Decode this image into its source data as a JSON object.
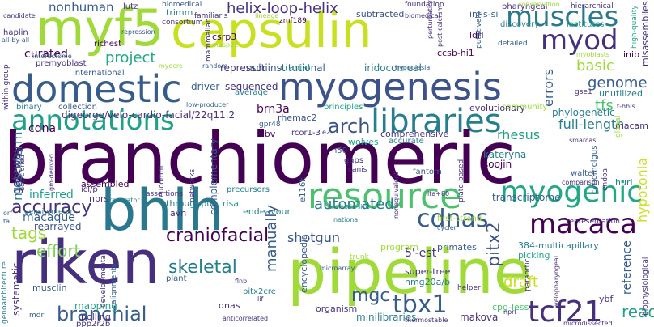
{
  "words": {
    "w1": "capsulin",
    "w2": "myf5",
    "w3": "domestic",
    "w4": "myogenesis",
    "w5": "muscles",
    "w6": "myod",
    "w7": "annotations",
    "w8": "libraries",
    "w9": "arch",
    "w10": "branchiomeric",
    "w11": "bhlh",
    "w12": "resource",
    "w13": "riken",
    "w14": "pipeline",
    "w15": "myogenic",
    "w16": "cdnas",
    "w17": "macaca",
    "w18": "tcf21",
    "w19": "accuracy",
    "w20": "tags",
    "w21": "helix-loop-helix",
    "w22": "project",
    "w23": "craniofacial",
    "w24": "branchial",
    "w25": "skeletal",
    "w26": "tbx1",
    "w27": "effort",
    "w28": "automated",
    "w29": "mgc",
    "w30": "shotgun",
    "w31": "genome",
    "w32": "basic",
    "w33": "tfs",
    "w34": "full-length",
    "w35": "nonhuman",
    "w36": "curated",
    "w37": "mesoderm",
    "w38": "gateway",
    "w39": "inferred",
    "w40": "macaque",
    "w41": "rearrayed",
    "w42": "manually",
    "w43": "pitx2",
    "w44": "draft",
    "w45": "read",
    "w46": "reference",
    "w47": "hypotonia",
    "w48": "errors",
    "w49": "sequenced",
    "w50": "multiinstitutional",
    "w51": "iridocorneal",
    "w52": "digeorge/velo-cardio-facial/22q11.2",
    "w53": "cdna",
    "w54": "brn3a",
    "w55": "rhemac2",
    "w56": "rhesus",
    "w57": "comprehensive",
    "w58": "soojin",
    "w59": "kateryna",
    "w60": "transcriptome",
    "w61": "phylogenetic",
    "w62": "encyclopedia",
    "w63": "minilibraries",
    "w64": "makova",
    "w65": "5'-est",
    "w66": "picking",
    "w67": "trimm",
    "w68": "csrp3",
    "w69": "repressor",
    "w70": "cranial",
    "w71": "driver",
    "w72": "subtracted",
    "w73": "ccsb-hi1",
    "w74": "infls-si",
    "w75": "ldrl",
    "w76": "evolutionary",
    "w77": "polling",
    "w78": "ppp2r2b",
    "w79": "mapping",
    "w80": "systematic",
    "w81": "assembled",
    "w82": "nprs",
    "w83": "throughput",
    "w84": "avn",
    "w85": "risa",
    "w86": "endeavour",
    "w87": "program",
    "w88": "primates",
    "w89": "384-multicapillary",
    "w90": "super-tree",
    "w91": "hmg20a/b",
    "w92": "ybf",
    "w93": "cpg-less",
    "w94": "dnas",
    "w95": "organism",
    "w96": "musclin",
    "w97": "ebv",
    "w98": "huri",
    "w99": "inib",
    "w100": "unutilized",
    "w101": "macam",
    "w102": "wolves",
    "w103": "accurate",
    "w104": "rcor1-3",
    "w105": "n50",
    "w106": "gaps",
    "w107": "fantom",
    "w108": "walter",
    "w109": "principles",
    "w110": "community",
    "w111": "collection",
    "w112": "average",
    "w113": "international",
    "w114": "premyoblast",
    "w115": "binary",
    "w116": "haplin",
    "w117": "lutz",
    "w118": "richest",
    "w119": "biomedical",
    "w120": "familiaris",
    "w121": "consortium",
    "w122": "mammalian",
    "w123": "zmf189",
    "w124": "foundation",
    "w125": "pharyngeal",
    "w126": "hierarchical",
    "w127": "institutes",
    "w128": "high-quality",
    "w129": "misassemblies",
    "w130": "discovery",
    "w131": "detailed",
    "w132": "gse1",
    "w133": "myoblasts",
    "w134": "gpr48",
    "w135": "e116k",
    "w136": "icl/p",
    "w137": "eucomm",
    "w138": "networks",
    "w139": "complementary",
    "w140": "precursors",
    "w141": "cynomolgus",
    "w142": "endoa",
    "w143": "canis",
    "w144": "plate-based",
    "w145": "first-strand",
    "w146": "representation",
    "w147": "densitometer",
    "w148": "developmental",
    "w149": "microarray",
    "w150": "alignments",
    "w151": "trunk",
    "w152": "helper",
    "w153": "paraortic",
    "w154": "thermostable",
    "w155": "biophysiological",
    "w156": "microdissected",
    "w157": "anticorrelated",
    "w158": "plant",
    "w159": "assertions",
    "w160": "preparator",
    "w161": "national",
    "w162": "cycler",
    "w163": "comparison",
    "w164": "lta+80",
    "w165": "pitx2cre",
    "w166": "genoarchitecture",
    "w167": "mdri",
    "w168": "nonequivalent",
    "w169": "candidate",
    "w170": "repression",
    "w171": "interactome",
    "w172": "myocre",
    "w173": "random",
    "w174": "hypoplasia",
    "w175": "low-producer",
    "w176": "within-group",
    "w177": "all-by-all",
    "w178": "lineage",
    "w179": "prolactin-like",
    "w180": "biomedical",
    "w181": "t-hhls",
    "w182": "smarcas",
    "w183": "global",
    "w184": "conservation",
    "w185": "putatively",
    "w186": "perturbation",
    "w187": "post-calcium",
    "w188": "musp22",
    "w189": "velopharyngeal",
    "w190": "nprl",
    "w191": "lif",
    "w192": "flnb",
    "w193": "orf",
    "w194": "ta",
    "w195": "gm-derived",
    "w196": "dog-cloned",
    "w197": "e2"
  }
}
